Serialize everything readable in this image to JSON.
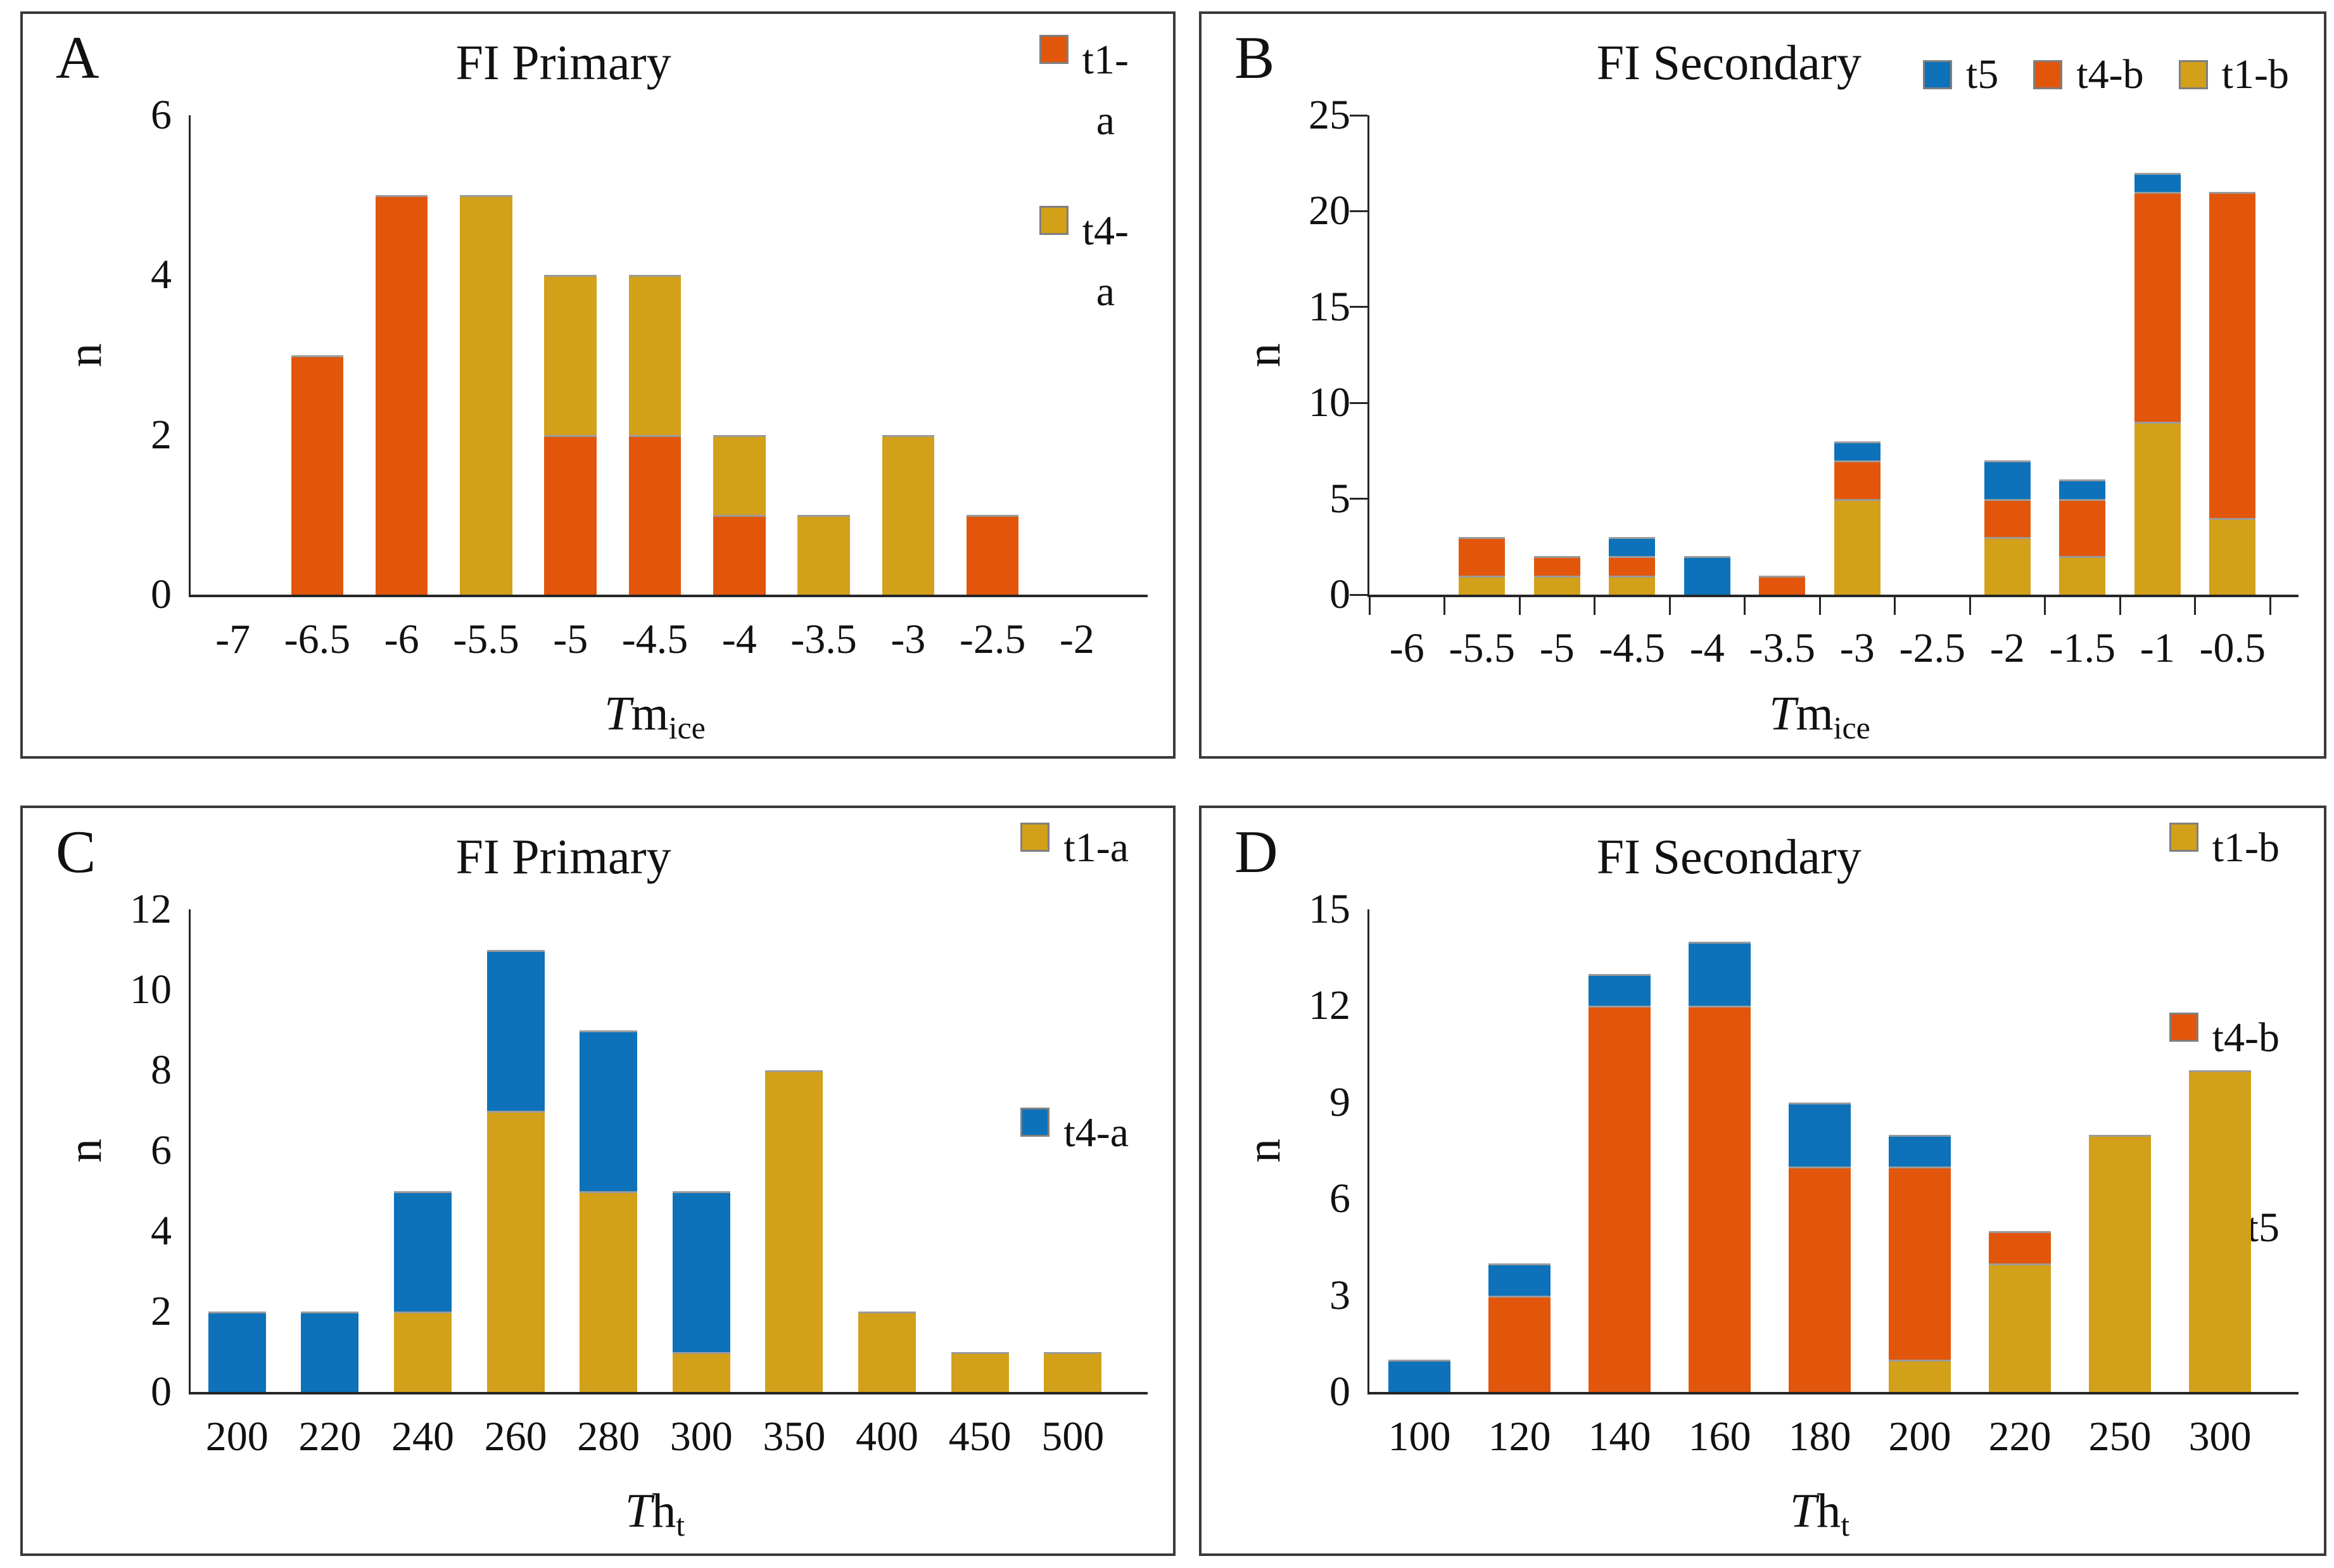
{
  "colors": {
    "orange": "#E2560C",
    "gold": "#D3A019",
    "blue": "#0D72BA",
    "axis": "#262626",
    "panel_border": "#3a3a3a",
    "segment_divider": "#9b9b9b",
    "legend_square_border": "#7f7f7f"
  },
  "chart_data": [
    {
      "type": "bar",
      "stacked": true,
      "letter": "A",
      "title": "FI Primary",
      "ylabel": "n",
      "xlabel": {
        "italic": "T",
        "base": "m",
        "sub": "ice"
      },
      "ylim": [
        0,
        6
      ],
      "yticks": [
        0,
        2,
        4,
        6
      ],
      "grid": false,
      "axis_tick_marks": false,
      "categories": [
        "-7",
        "-6.5",
        "-6",
        "-5.5",
        "-5",
        "-4.5",
        "-4",
        "-3.5",
        "-3",
        "-2.5",
        "-2"
      ],
      "series": [
        {
          "name": "t1-a",
          "color": "orange",
          "values": [
            0,
            3,
            5,
            0,
            2,
            2,
            1,
            0,
            0,
            1,
            0
          ]
        },
        {
          "name": "t4-a",
          "color": "gold",
          "values": [
            0,
            0,
            0,
            5,
            2,
            2,
            1,
            1,
            2,
            0,
            0
          ]
        }
      ],
      "legend": {
        "position": "top-right",
        "orientation": "vertical",
        "items": [
          {
            "label": "t1-\na",
            "color": "orange"
          },
          {
            "label": "t4-\na",
            "color": "gold"
          }
        ]
      }
    },
    {
      "type": "bar",
      "stacked": true,
      "letter": "B",
      "title": "FI Secondary",
      "ylabel": "n",
      "xlabel": {
        "italic": "T",
        "base": "m",
        "sub": "ice"
      },
      "ylim": [
        0,
        25
      ],
      "yticks": [
        0,
        5,
        10,
        15,
        20,
        25
      ],
      "grid": false,
      "axis_tick_marks": true,
      "categories": [
        "-6",
        "-5.5",
        "-5",
        "-4.5",
        "-4",
        "-3.5",
        "-3",
        "-2.5",
        "-2",
        "-1.5",
        "-1",
        "-0.5"
      ],
      "series": [
        {
          "name": "t1-b",
          "color": "gold",
          "values": [
            0,
            1,
            1,
            1,
            0,
            0,
            5,
            0,
            3,
            2,
            9,
            4
          ]
        },
        {
          "name": "t4-b",
          "color": "orange",
          "values": [
            0,
            2,
            1,
            1,
            0,
            1,
            2,
            0,
            2,
            3,
            12,
            17
          ]
        },
        {
          "name": "t5",
          "color": "blue",
          "values": [
            0,
            0,
            0,
            1,
            2,
            0,
            1,
            0,
            2,
            1,
            1,
            0
          ]
        }
      ],
      "legend": {
        "position": "top-right",
        "orientation": "horizontal",
        "items": [
          {
            "label": "t5",
            "color": "blue"
          },
          {
            "label": "t4-b",
            "color": "orange"
          },
          {
            "label": "t1-b",
            "color": "gold"
          }
        ]
      }
    },
    {
      "type": "bar",
      "stacked": true,
      "letter": "C",
      "title": "FI Primary",
      "ylabel": "n",
      "xlabel": {
        "italic": "T",
        "base": "h",
        "sub": "t"
      },
      "ylim": [
        0,
        12
      ],
      "yticks": [
        0,
        2,
        4,
        6,
        8,
        10,
        12
      ],
      "grid": false,
      "axis_tick_marks": false,
      "categories": [
        "200",
        "220",
        "240",
        "260",
        "280",
        "300",
        "350",
        "400",
        "450",
        "500"
      ],
      "series": [
        {
          "name": "t1-a",
          "color": "gold",
          "values": [
            0,
            0,
            2,
            7,
            5,
            1,
            8,
            2,
            1,
            1
          ]
        },
        {
          "name": "t4-a",
          "color": "blue",
          "values": [
            2,
            2,
            3,
            4,
            4,
            4,
            0,
            0,
            0,
            0
          ]
        }
      ],
      "legend": {
        "position": "top-right",
        "orientation": "vertical",
        "items": [
          {
            "label": "t1-a",
            "color": "gold"
          },
          {
            "label": "t4-a",
            "color": "blue"
          }
        ]
      }
    },
    {
      "type": "bar",
      "stacked": true,
      "letter": "D",
      "title": "FI Secondary",
      "ylabel": "n",
      "xlabel": {
        "italic": "T",
        "base": "h",
        "sub": "t"
      },
      "ylim": [
        0,
        15
      ],
      "yticks": [
        0,
        3,
        6,
        9,
        12,
        15
      ],
      "grid": false,
      "axis_tick_marks": false,
      "categories": [
        "100",
        "120",
        "140",
        "160",
        "180",
        "200",
        "220",
        "250",
        "300"
      ],
      "series": [
        {
          "name": "t1-b",
          "color": "gold",
          "values": [
            0,
            0,
            0,
            0,
            0,
            1,
            4,
            8,
            10
          ]
        },
        {
          "name": "t4-b",
          "color": "orange",
          "values": [
            0,
            3,
            12,
            12,
            7,
            6,
            1,
            0,
            0
          ]
        },
        {
          "name": "t5",
          "color": "blue",
          "values": [
            1,
            1,
            1,
            2,
            2,
            1,
            0,
            0,
            0
          ]
        }
      ],
      "legend": {
        "position": "top-right",
        "orientation": "vertical",
        "items": [
          {
            "label": "t1-b",
            "color": "gold"
          },
          {
            "label": "t4-b",
            "color": "orange"
          },
          {
            "label": "t5",
            "color": "blue"
          }
        ]
      }
    }
  ]
}
